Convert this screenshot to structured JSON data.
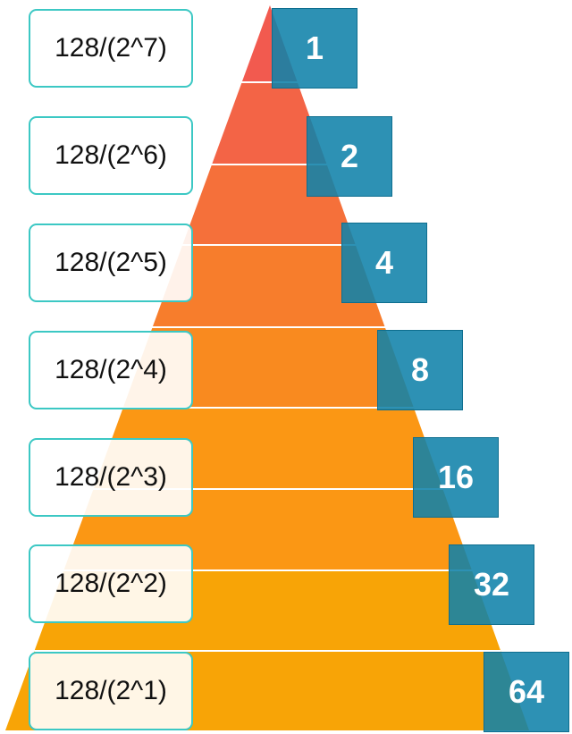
{
  "levels": [
    {
      "label": "128/(2^7)",
      "value": "1",
      "color": "#f25a4f"
    },
    {
      "label": "128/(2^6)",
      "value": "2",
      "color": "#f36446"
    },
    {
      "label": "128/(2^5)",
      "value": "4",
      "color": "#f5703a"
    },
    {
      "label": "128/(2^4)",
      "value": "8",
      "color": "#f77d2c"
    },
    {
      "label": "128/(2^3)",
      "value": "16",
      "color": "#f98a1f"
    },
    {
      "label": "128/(2^2)",
      "value": "32",
      "color": "#fb9714"
    },
    {
      "label": "128/(2^1)",
      "value": "64",
      "color": "#f8a406"
    }
  ],
  "colors": {
    "label_border": "#3cc8c4",
    "value_box": "#1082aa",
    "separator": "#ffffff"
  }
}
